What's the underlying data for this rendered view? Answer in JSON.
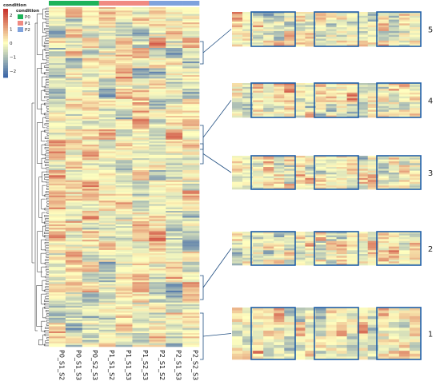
{
  "chart_data": {
    "type": "heatmap",
    "title": "",
    "legend": {
      "title": "condition",
      "scale_ticks": [
        "2",
        "1",
        "0",
        "−1",
        "−2"
      ],
      "scale_range": [
        -2.4,
        2.4
      ],
      "scale_colors": [
        "#3b66a8",
        "#ffffbf",
        "#c8322c"
      ],
      "condition_title": "condition",
      "conditions": [
        {
          "label": "P0",
          "color": "#1db35a"
        },
        {
          "label": "P1",
          "color": "#f08a82"
        },
        {
          "label": "P2",
          "color": "#7fa2dc"
        }
      ]
    },
    "columns": [
      "P0_S1_S2",
      "P0_S1_S3",
      "P0_S2_S3",
      "P1_S1_S2",
      "P1_S1_S3",
      "P1_S2_S3",
      "P2_S1_S2",
      "P2_S1_S3",
      "P2_S2_S3"
    ],
    "column_conditions": [
      "P0",
      "P0",
      "P0",
      "P1",
      "P1",
      "P1",
      "P2",
      "P2",
      "P2"
    ],
    "clusters": [
      {
        "label": "5",
        "color": "#1f5fa8"
      },
      {
        "label": "4",
        "color": "#1f5fa8"
      },
      {
        "label": "3",
        "color": "#1f5fa8"
      },
      {
        "label": "2",
        "color": "#1f5fa8"
      },
      {
        "label": "1",
        "color": "#1f5fa8"
      }
    ],
    "grid": false
  }
}
